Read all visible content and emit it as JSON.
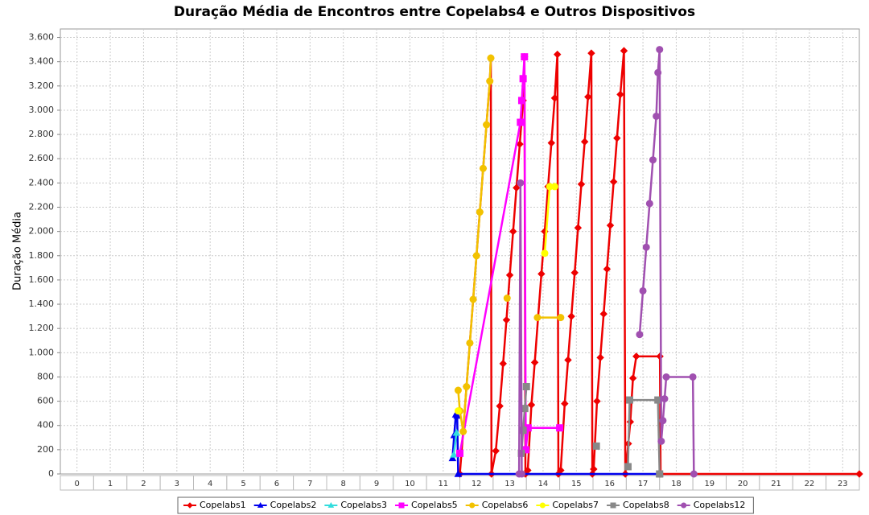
{
  "chart_data": {
    "type": "line",
    "title": "Duração Média de Encontros entre Copelabs4 e Outros Dispositivos",
    "y_label": "Duração Média",
    "xlim": [
      -0.5,
      23.5
    ],
    "xticks": [
      0,
      1,
      2,
      3,
      4,
      5,
      6,
      7,
      8,
      9,
      10,
      11,
      12,
      13,
      14,
      15,
      16,
      17,
      18,
      19,
      20,
      21,
      22,
      23
    ],
    "ylim": [
      0,
      3670
    ],
    "yticks": [
      0,
      200,
      400,
      600,
      800,
      {
        "value": 1000,
        "label": "1.000"
      },
      {
        "value": 1200,
        "label": "1.200"
      },
      {
        "value": 1400,
        "label": "1.400"
      },
      {
        "value": 1600,
        "label": "1.600"
      },
      {
        "value": 1800,
        "label": "1.800"
      },
      {
        "value": 2000,
        "label": "2.000"
      },
      {
        "value": 2200,
        "label": "2.200"
      },
      {
        "value": 2400,
        "label": "2.400"
      },
      {
        "value": 2600,
        "label": "2.600"
      },
      {
        "value": 2800,
        "label": "2.800"
      },
      {
        "value": 3000,
        "label": "3.000"
      },
      {
        "value": 3200,
        "label": "3.200"
      },
      {
        "value": 3400,
        "label": "3.400"
      },
      {
        "value": 3600,
        "label": "3.600"
      }
    ],
    "grid": true,
    "legend": "bottom",
    "series": [
      {
        "name": "Copelabs1",
        "color": "#ee0000",
        "marker": "diamond",
        "x": [
          11.5,
          11.6,
          11.7,
          11.8,
          11.9,
          12.0,
          12.1,
          12.2,
          12.3,
          12.4,
          12.43,
          12.45,
          12.58,
          12.7,
          12.8,
          12.9,
          13.0,
          13.1,
          13.2,
          13.3,
          13.4,
          13.44,
          13.47,
          13.54,
          13.65,
          13.75,
          13.85,
          13.95,
          14.05,
          14.15,
          14.25,
          14.35,
          14.43,
          14.46,
          14.53,
          14.65,
          14.75,
          14.85,
          14.95,
          15.05,
          15.15,
          15.25,
          15.35,
          15.45,
          15.48,
          15.52,
          15.62,
          15.72,
          15.82,
          15.92,
          16.02,
          16.12,
          16.22,
          16.32,
          16.43,
          16.47,
          16.56,
          16.62,
          16.7,
          16.8,
          17.51,
          17.53,
          23.5
        ],
        "values": [
          0,
          350,
          720,
          1080,
          1440,
          1800,
          2160,
          2520,
          2880,
          3240,
          3430,
          0,
          190,
          560,
          910,
          1270,
          1640,
          2000,
          2360,
          2720,
          3080,
          3440,
          0,
          30,
          570,
          920,
          1290,
          1650,
          2000,
          2370,
          2730,
          3100,
          3460,
          0,
          30,
          580,
          940,
          1300,
          1660,
          2030,
          2390,
          2740,
          3110,
          3470,
          0,
          40,
          600,
          960,
          1320,
          1690,
          2050,
          2410,
          2770,
          3130,
          3490,
          0,
          250,
          430,
          790,
          970,
          970,
          0,
          0
        ]
      },
      {
        "name": "Copelabs2",
        "color": "#0000ee",
        "marker": "triangle",
        "x": [
          11.28,
          11.33,
          11.38,
          11.42,
          11.45,
          17.5
        ],
        "values": [
          130,
          320,
          490,
          480,
          0,
          0
        ]
      },
      {
        "name": "Copelabs3",
        "color": "#33dddd",
        "marker": "triangle",
        "x": [
          11.32,
          11.4
        ],
        "values": [
          160,
          340
        ]
      },
      {
        "name": "Copelabs5",
        "color": "#ff00ff",
        "marker": "square",
        "x": [
          11.5,
          13.32,
          13.36,
          13.4,
          13.44,
          13.48,
          13.55,
          14.5
        ],
        "values": [
          170,
          2900,
          3080,
          3260,
          3440,
          200,
          380,
          380
        ]
      },
      {
        "name": "Copelabs6",
        "color": "#f2c200",
        "marker": "circle",
        "x": [
          11.45,
          11.5,
          11.6,
          11.7,
          11.8,
          11.9,
          12.0,
          12.1,
          12.2,
          12.3,
          12.4,
          12.43,
          null,
          12.92,
          null,
          13.83,
          14.53
        ],
        "values": [
          690,
          520,
          350,
          720,
          1080,
          1440,
          1800,
          2160,
          2520,
          2880,
          3240,
          3430,
          null,
          1450,
          null,
          1290,
          1290
        ]
      },
      {
        "name": "Copelabs7",
        "color": "#ffff00",
        "marker": "circle",
        "x": [
          11.45,
          null,
          14.05,
          14.2,
          14.35
        ],
        "values": [
          520,
          null,
          1820,
          2370,
          2370
        ]
      },
      {
        "name": "Copelabs8",
        "color": "#888888",
        "marker": "square",
        "x": [
          13.35,
          13.4,
          13.45,
          13.5,
          null,
          15.6,
          null,
          16.55,
          16.6,
          17.45,
          17.5
        ],
        "values": [
          170,
          360,
          540,
          720,
          null,
          230,
          null,
          60,
          610,
          610,
          0
        ]
      },
      {
        "name": "Copelabs12",
        "color": "#a050b0",
        "marker": "circle",
        "x": [
          13.28,
          13.32,
          13.36,
          null,
          16.9,
          17.0,
          17.1,
          17.2,
          17.3,
          17.4,
          17.45,
          17.5,
          17.55,
          17.6,
          17.65,
          17.7,
          18.5,
          18.53
        ],
        "values": [
          0,
          2400,
          0,
          null,
          1150,
          1510,
          1870,
          2230,
          2590,
          2950,
          3310,
          3500,
          270,
          440,
          620,
          800,
          800,
          0
        ]
      }
    ]
  }
}
